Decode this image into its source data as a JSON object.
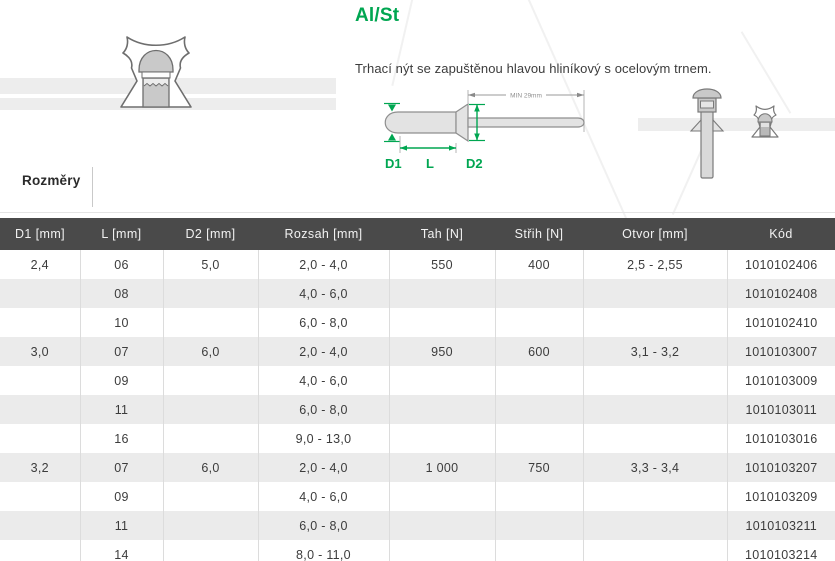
{
  "header": {
    "title": "Al/St",
    "description": "Trhací nýt se zapuštěnou hlavou hliníkový s ocelovým trnem."
  },
  "section": {
    "label": "Rozměry"
  },
  "diagram": {
    "min_label": "MIN 29mm",
    "d1_label": "D1",
    "l_label": "L",
    "d2_label": "D2"
  },
  "colors": {
    "accent_green": "#00a651",
    "table_header_bg": "#4a4a4a",
    "row_alt": "#ebebeb"
  },
  "table": {
    "headers": [
      "D1 [mm]",
      "L [mm]",
      "D2 [mm]",
      "Rozsah [mm]",
      "Tah [N]",
      "Střih [N]",
      "Otvor [mm]",
      "Kód"
    ],
    "rows": [
      [
        "2,4",
        "06",
        "5,0",
        "2,0 - 4,0",
        "550",
        "400",
        "2,5 - 2,55",
        "1010102406"
      ],
      [
        "",
        "08",
        "",
        "4,0 - 6,0",
        "",
        "",
        "",
        "1010102408"
      ],
      [
        "",
        "10",
        "",
        "6,0 - 8,0",
        "",
        "",
        "",
        "1010102410"
      ],
      [
        "3,0",
        "07",
        "6,0",
        "2,0 - 4,0",
        "950",
        "600",
        "3,1 - 3,2",
        "1010103007"
      ],
      [
        "",
        "09",
        "",
        "4,0 - 6,0",
        "",
        "",
        "",
        "1010103009"
      ],
      [
        "",
        "11",
        "",
        "6,0 - 8,0",
        "",
        "",
        "",
        "1010103011"
      ],
      [
        "",
        "16",
        "",
        "9,0 - 13,0",
        "",
        "",
        "",
        "1010103016"
      ],
      [
        "3,2",
        "07",
        "6,0",
        "2,0 - 4,0",
        "1 000",
        "750",
        "3,3 - 3,4",
        "1010103207"
      ],
      [
        "",
        "09",
        "",
        "4,0 - 6,0",
        "",
        "",
        "",
        "1010103209"
      ],
      [
        "",
        "11",
        "",
        "6,0 - 8,0",
        "",
        "",
        "",
        "1010103211"
      ],
      [
        "",
        "14",
        "",
        "8,0 - 11,0",
        "",
        "",
        "",
        "1010103214"
      ]
    ]
  }
}
